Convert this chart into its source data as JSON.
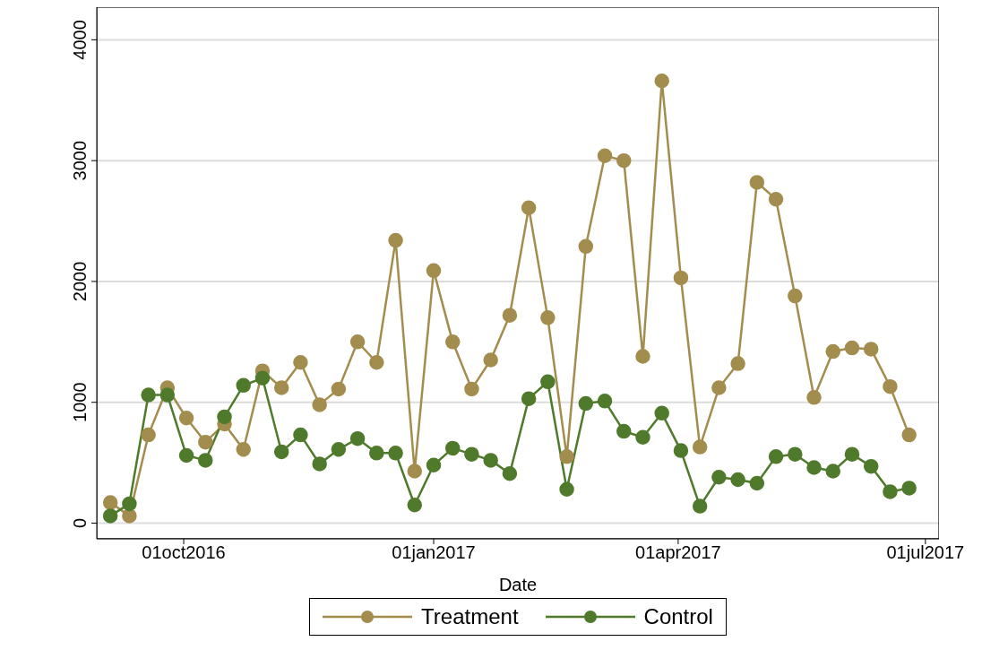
{
  "chart_data": {
    "type": "line",
    "xlabel": "Date",
    "x": [
      "2016-09-04",
      "2016-09-11",
      "2016-09-18",
      "2016-09-25",
      "2016-10-02",
      "2016-10-09",
      "2016-10-16",
      "2016-10-23",
      "2016-10-30",
      "2016-11-06",
      "2016-11-13",
      "2016-11-20",
      "2016-11-27",
      "2016-12-04",
      "2016-12-11",
      "2016-12-18",
      "2016-12-25",
      "2017-01-01",
      "2017-01-08",
      "2017-01-15",
      "2017-01-22",
      "2017-01-29",
      "2017-02-05",
      "2017-02-12",
      "2017-02-19",
      "2017-02-26",
      "2017-03-05",
      "2017-03-12",
      "2017-03-19",
      "2017-03-26",
      "2017-04-02",
      "2017-04-09",
      "2017-04-16",
      "2017-04-23",
      "2017-04-30",
      "2017-05-07",
      "2017-05-14",
      "2017-05-21",
      "2017-05-28",
      "2017-06-04",
      "2017-06-11",
      "2017-06-18",
      "2017-06-25"
    ],
    "series": [
      {
        "name": "Treatment",
        "color": "#a38d4e",
        "values": [
          170,
          60,
          730,
          1120,
          870,
          670,
          820,
          610,
          1260,
          1120,
          1330,
          980,
          1110,
          1500,
          1330,
          2340,
          430,
          2090,
          1500,
          1110,
          1350,
          1720,
          2610,
          1700,
          550,
          2290,
          3040,
          3000,
          1380,
          3660,
          2030,
          630,
          1120,
          1320,
          2820,
          2680,
          1880,
          1040,
          1420,
          1450,
          1440,
          1130,
          730
        ]
      },
      {
        "name": "Control",
        "color": "#4f7a2c",
        "values": [
          60,
          160,
          1060,
          1060,
          560,
          520,
          880,
          1140,
          1200,
          590,
          730,
          490,
          610,
          700,
          580,
          580,
          150,
          480,
          620,
          570,
          520,
          410,
          1030,
          1170,
          280,
          990,
          1010,
          760,
          710,
          910,
          600,
          140,
          380,
          360,
          330,
          550,
          570,
          460,
          430,
          570,
          470,
          260,
          290
        ]
      }
    ],
    "xlim": [
      "2016-08-30",
      "2017-07-06"
    ],
    "xticks": [
      {
        "value": "2016-10-01",
        "label": "01oct2016"
      },
      {
        "value": "2017-01-01",
        "label": "01jan2017"
      },
      {
        "value": "2017-04-01",
        "label": "01apr2017"
      },
      {
        "value": "2017-07-01",
        "label": "01jul2017"
      }
    ],
    "ylim": [
      -130,
      4270
    ],
    "yticks": [
      0,
      1000,
      2000,
      3000,
      4000
    ],
    "grid": "y",
    "legend": "bottom",
    "marker": "circle",
    "line_style": "solid"
  }
}
